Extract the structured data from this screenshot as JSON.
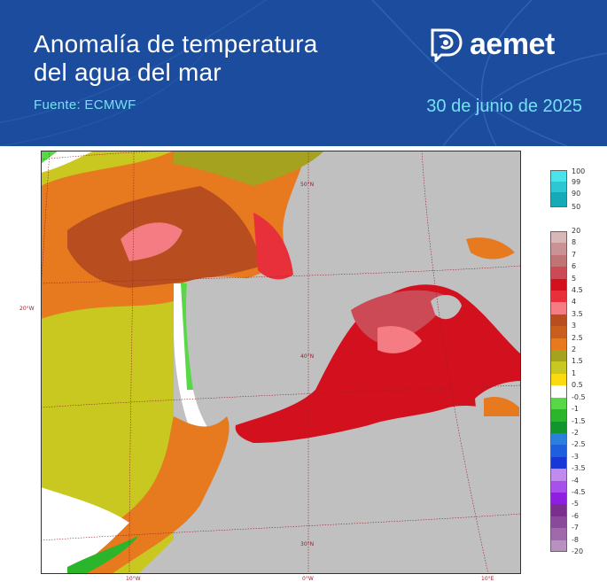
{
  "header": {
    "title": "Anomalía de temperatura\ndel agua del mar",
    "source": "Fuente: ECMWF",
    "date": "30 de junio de 2025",
    "logo_text": "aemet",
    "logo_icon": "aemet-symbol-icon",
    "background_color": "#1b4c9e",
    "accent_color": "#74e1f2"
  },
  "map": {
    "variable": "sea surface temperature anomaly",
    "lon_labels": [
      "20°W",
      "10°W",
      "0°W",
      "10°E"
    ],
    "lat_labels": [
      "50°N",
      "40°N",
      "30°N"
    ],
    "land_color": "#c0c0c0",
    "grid_color": "#9c1d2c"
  },
  "legend_top": {
    "labels": [
      "100",
      "99",
      "90",
      "50"
    ],
    "colors": [
      "#49e3ea",
      "#2cc7d3",
      "#16aab8"
    ]
  },
  "legend_main": {
    "labels": [
      "20",
      "8",
      "7",
      "6",
      "5",
      "4.5",
      "4",
      "3.5",
      "3",
      "2.5",
      "2",
      "1.5",
      "1",
      "0.5",
      "-0.5",
      "-1",
      "-1.5",
      "-2",
      "-2.5",
      "-3",
      "-3.5",
      "-4",
      "-4.5",
      "-5",
      "-6",
      "-7",
      "-8",
      "-20"
    ],
    "colors": [
      "#d7b7b8",
      "#c99295",
      "#c07476",
      "#cc4a55",
      "#d2101e",
      "#e8303a",
      "#f47c82",
      "#b84e1f",
      "#c95e1e",
      "#e7791f",
      "#a4a21f",
      "#c8c821",
      "#fbdb10",
      "#ffffff",
      "#58d846",
      "#2bb52b",
      "#11962d",
      "#2a80dc",
      "#1f5edc",
      "#1937d6",
      "#c08bed",
      "#a652ea",
      "#8e1fe0",
      "#7a2f8f",
      "#8a4a9a",
      "#a06aaa",
      "#b890c2"
    ]
  }
}
